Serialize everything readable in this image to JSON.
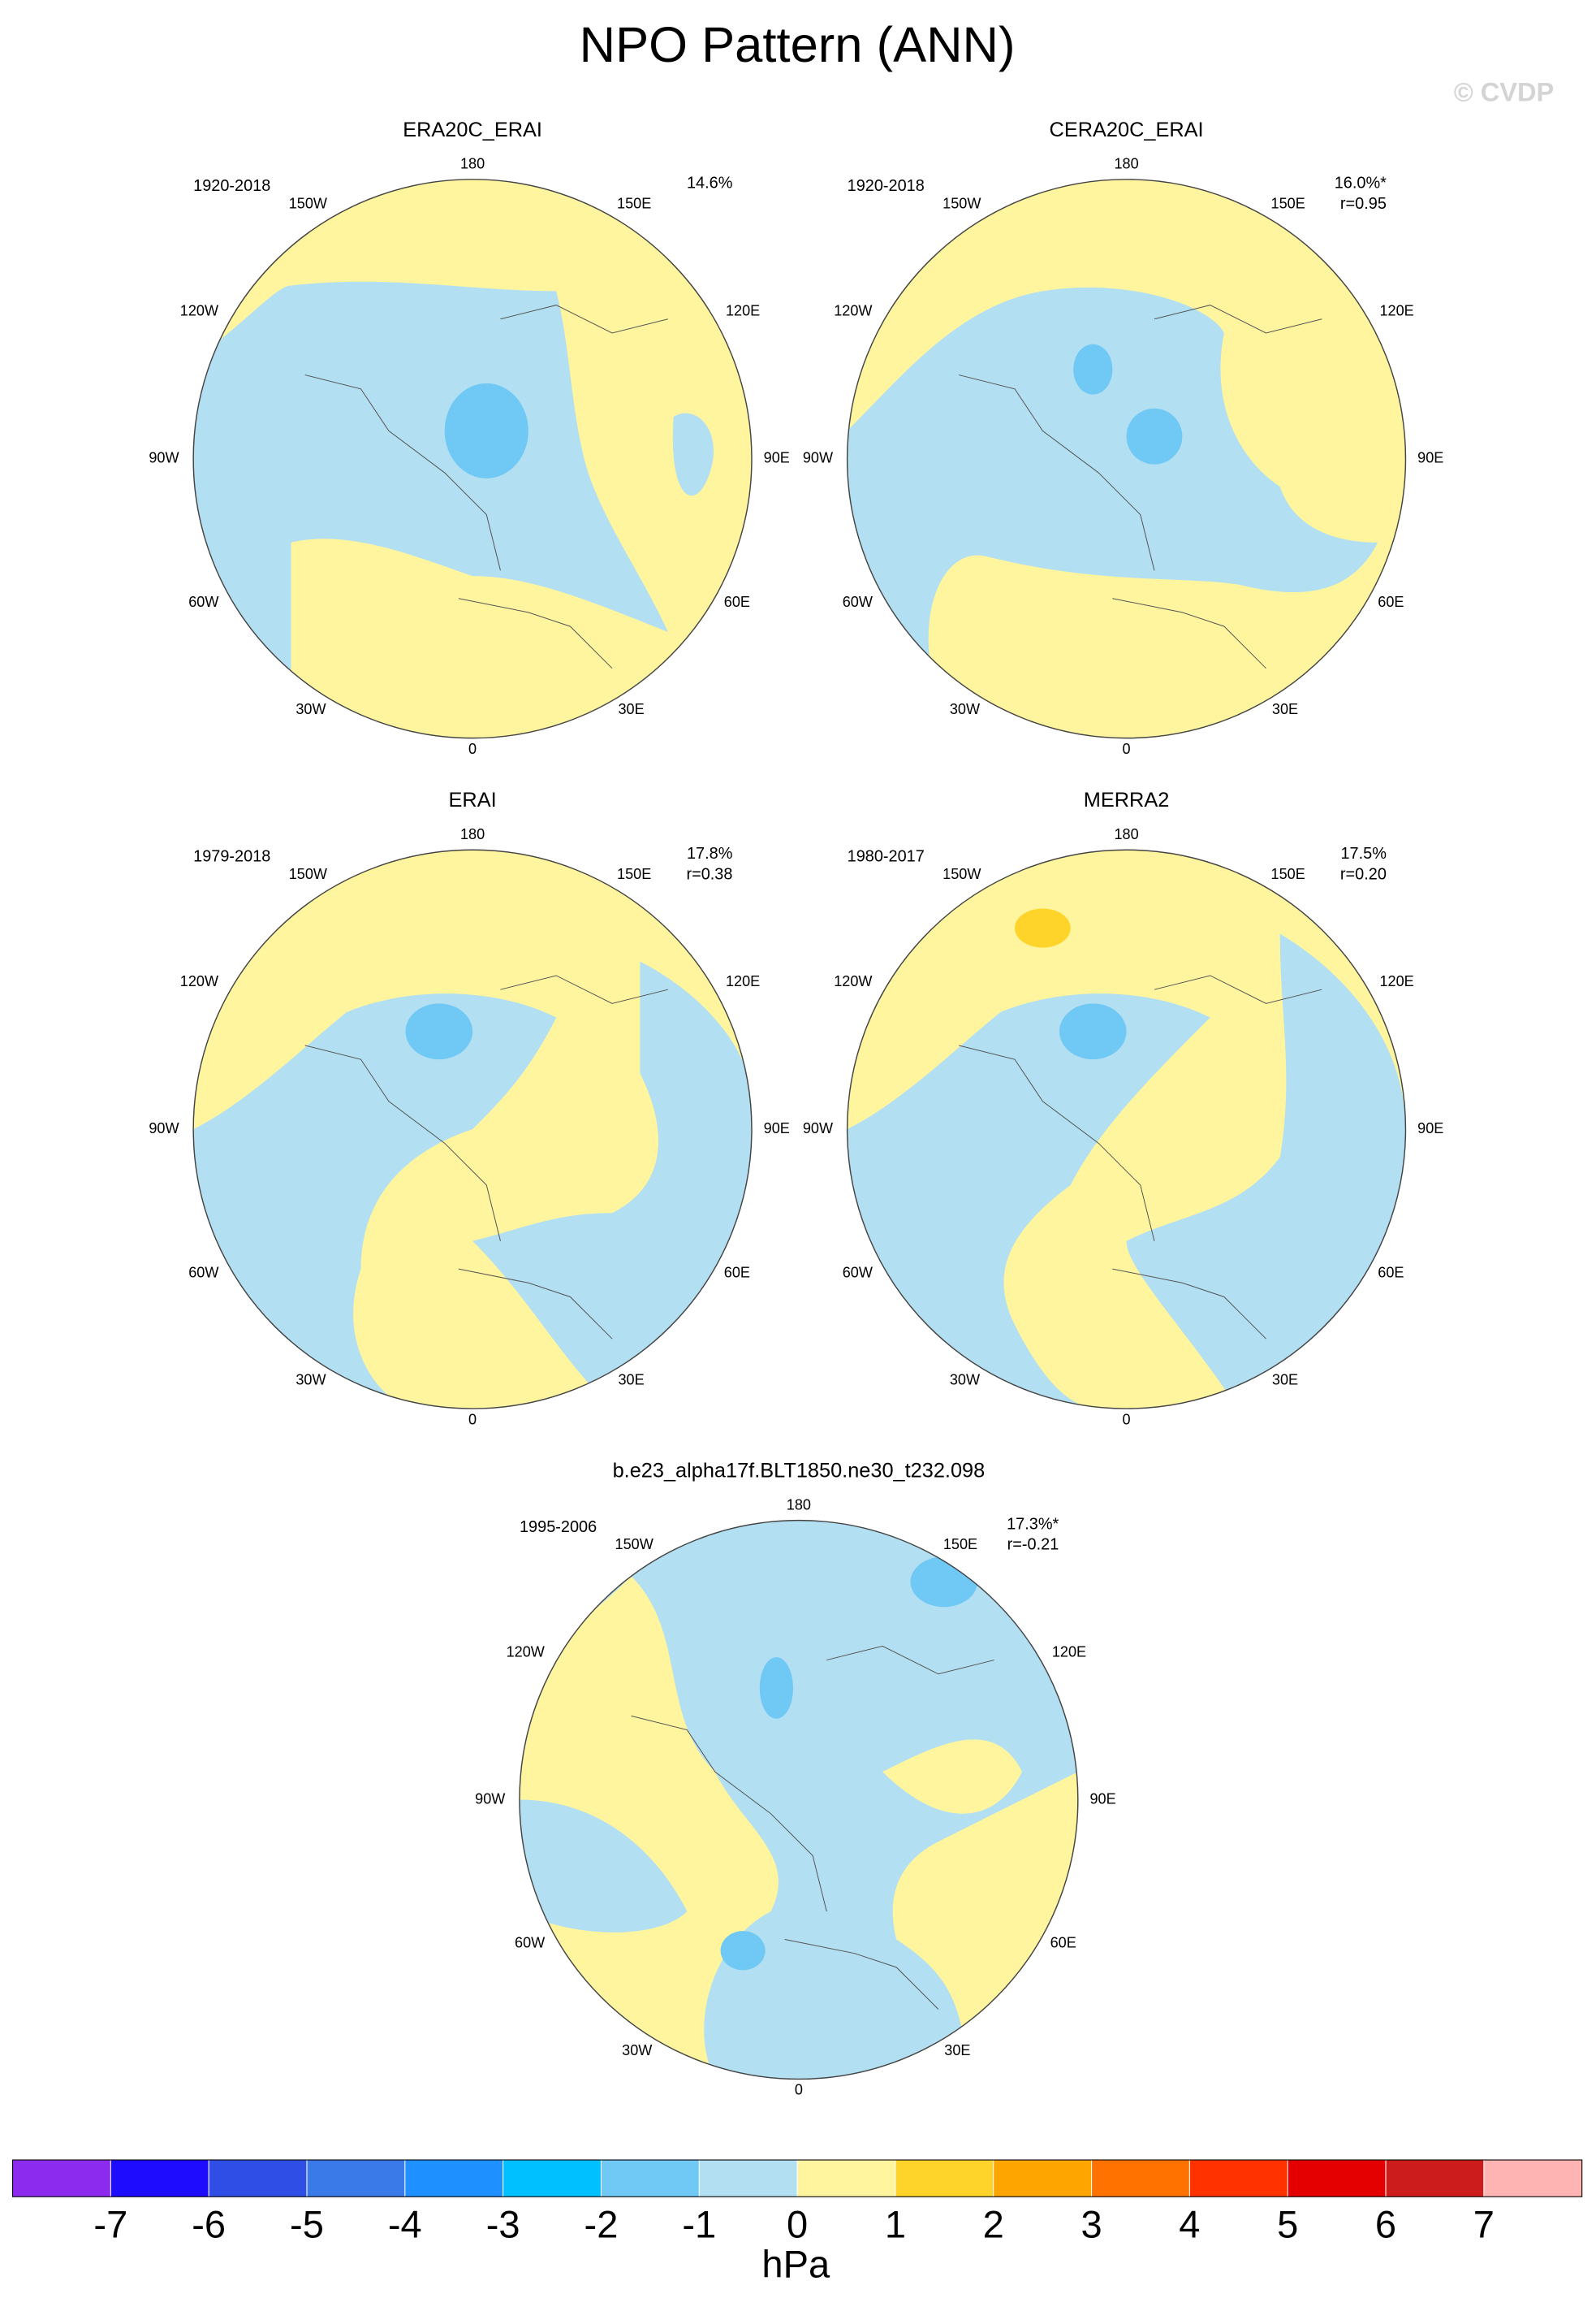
{
  "title": "NPO Pattern (ANN)",
  "copyright": "© CVDP",
  "longitude_labels": [
    "180",
    "150E",
    "120E",
    "90E",
    "60E",
    "30E",
    "0",
    "30W",
    "60W",
    "90W",
    "120W",
    "150W"
  ],
  "panels": [
    {
      "title": "ERA20C_ERAI",
      "period": "1920-2018",
      "variance": "14.6%"
    },
    {
      "title": "CERA20C_ERAI",
      "period": "1920-2018",
      "variance": "16.0%*",
      "correlation": "r=0.95"
    },
    {
      "title": "ERAI",
      "period": "1979-2018",
      "variance": "17.8%",
      "correlation": "r=0.38"
    },
    {
      "title": "MERRA2",
      "period": "1980-2017",
      "variance": "17.5%",
      "correlation": "r=0.20"
    },
    {
      "title": "b.e23_alpha17f.BLT1850.ne30_t232.098",
      "period": "1995-2006",
      "variance": "17.3%*",
      "correlation": "r=-0.21"
    }
  ],
  "colorbar": {
    "colors": [
      "#8c2aee",
      "#1e0cff",
      "#2e4ee6",
      "#3a7ae8",
      "#1e90ff",
      "#00c0ff",
      "#70c8f4",
      "#b2dff2",
      "#fff59e",
      "#ffd42a",
      "#ffa500",
      "#ff7200",
      "#ff3200",
      "#e40000",
      "#cc1c1c",
      "#ffb4b4"
    ],
    "ticks": [
      -7,
      -6,
      -5,
      -4,
      -3,
      -2,
      -1,
      0,
      1,
      2,
      3,
      4,
      5,
      6,
      7
    ],
    "unit": "hPa"
  }
}
